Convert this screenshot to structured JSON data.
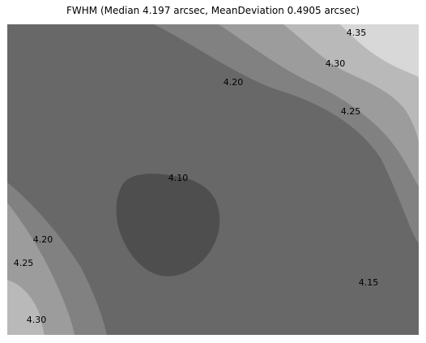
{
  "chart_data": {
    "type": "contour",
    "title": "FWHM (Median 4.197 arcsec, MeanDeviation 0.4905 arcsec)",
    "levels": [
      4.1,
      4.15,
      4.2,
      4.25,
      4.3,
      4.35
    ],
    "level_labels": [
      {
        "text": "4.35",
        "level": 4.35
      },
      {
        "text": "4.30",
        "level": 4.3
      },
      {
        "text": "4.20",
        "level": 4.2
      },
      {
        "text": "4.25",
        "level": 4.25
      },
      {
        "text": "4.10",
        "level": 4.1
      },
      {
        "text": "4.20",
        "level": 4.2
      },
      {
        "text": "4.25",
        "level": 4.25
      },
      {
        "text": "4.15",
        "level": 4.15
      },
      {
        "text": "4.30",
        "level": 4.3
      }
    ],
    "grid": false,
    "colormap": "grayscale",
    "fill_colors": {
      "4.10": "#4e4e4e",
      "4.15": "#686868",
      "4.20": "#818181",
      "4.25": "#9c9c9c",
      "4.30": "#b9b9b9",
      "4.35": "#d8d8d8",
      "above": "#ececec"
    }
  }
}
